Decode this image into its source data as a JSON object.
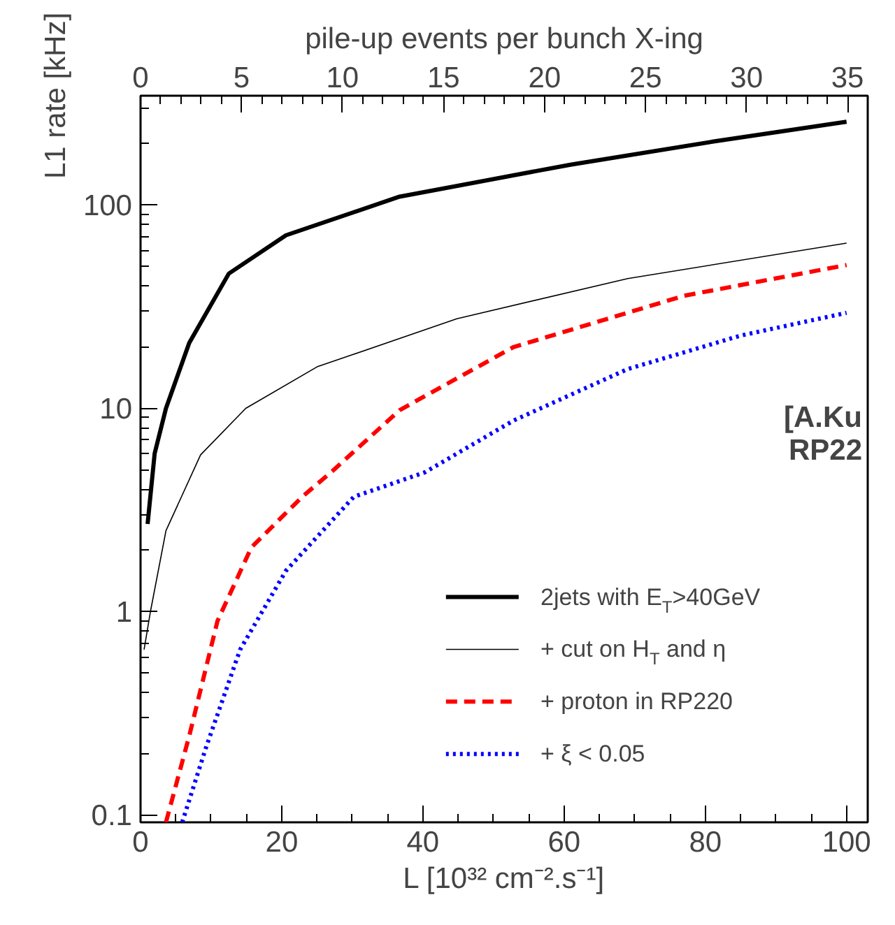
{
  "chart_data": {
    "type": "line",
    "xlabel": "L [10³² cm⁻².s⁻¹]",
    "ylabel": "L1 rate [kHz]",
    "x2label": "pile-up events per bunch X-ing",
    "xlim": [
      0,
      103
    ],
    "xticks": [
      0,
      20,
      40,
      60,
      80,
      100
    ],
    "x2lim": [
      0,
      36
    ],
    "x2ticks": [
      0,
      5,
      10,
      15,
      20,
      25,
      30,
      35
    ],
    "ylim": [
      0.092,
      345
    ],
    "yticks": [
      0.1,
      1,
      10,
      100
    ],
    "log": "y",
    "legend": "bottom right",
    "annotations": [
      "[A.Ku",
      "RP22"
    ],
    "series": [
      {
        "name": "2jets with E$_{T}$>40GeV",
        "color": "#000000",
        "line_style": "solid",
        "x": [
          1,
          2,
          3.6,
          6.9,
          12.5,
          20.6,
          36.7,
          60.9,
          81,
          100
        ],
        "values": [
          2.7,
          6,
          10,
          21,
          46,
          71,
          110,
          158,
          205,
          257
        ]
      },
      {
        "name": "+ cut on H$_{T}$ and η",
        "color": "#000000",
        "line_style": "solid",
        "x": [
          0.5,
          1.4,
          3.6,
          8.5,
          14.9,
          25,
          44.8,
          69,
          100
        ],
        "values": [
          0.65,
          1,
          2.5,
          5.9,
          10,
          16,
          27.6,
          43.5,
          65
        ]
      },
      {
        "name": "+ proton in RP220",
        "color": "#ff0000",
        "line_style": "dashed",
        "x": [
          3.6,
          6.9,
          10.9,
          15.7,
          23,
          27,
          36.7,
          52.8,
          77,
          100
        ],
        "values": [
          0.092,
          0.245,
          0.9,
          2.07,
          3.7,
          4.85,
          9.8,
          20,
          35.8,
          50.7
        ]
      },
      {
        "name": "+ ξ < 0.05",
        "color": "#0000ff",
        "line_style": "dotted",
        "x": [
          5.9,
          9.3,
          14.1,
          20.6,
          30.2,
          40.3,
          52.8,
          69,
          85,
          100
        ],
        "values": [
          0.092,
          0.216,
          0.65,
          1.59,
          3.67,
          4.85,
          8.7,
          15.6,
          22.8,
          29.5
        ]
      }
    ]
  }
}
